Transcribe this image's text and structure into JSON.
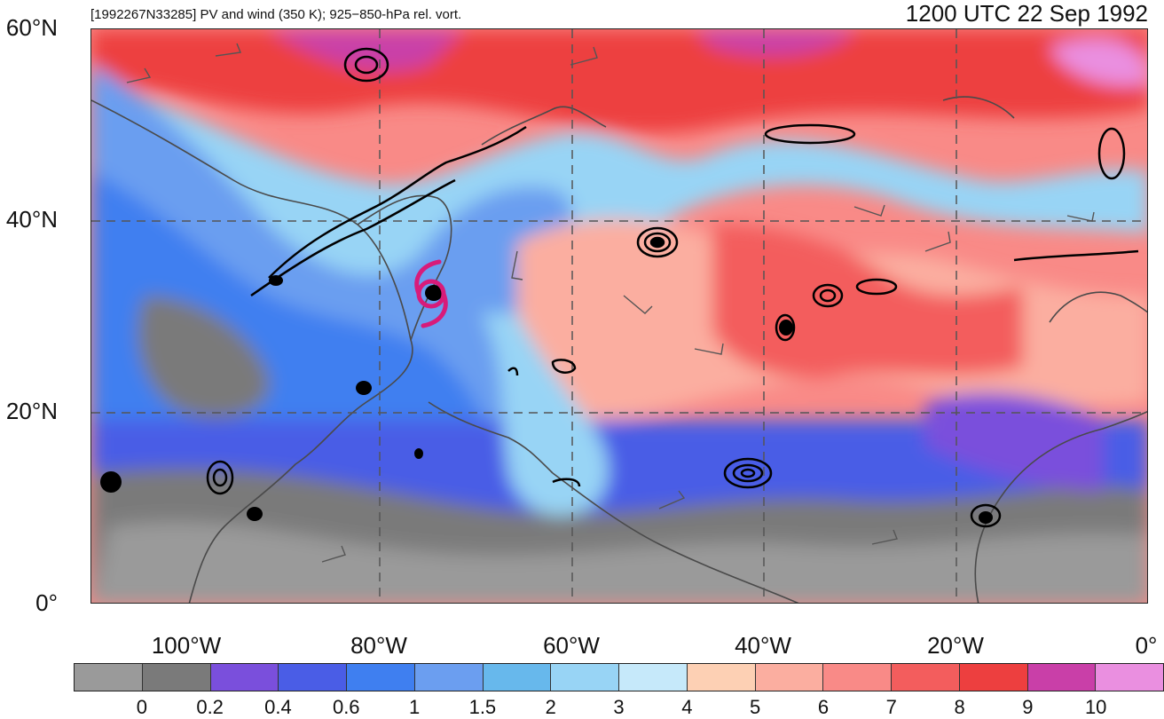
{
  "header": {
    "subtitle": "[1992267N33285] PV and wind (350 K); 925−850-hPa rel. vort.",
    "datetime": "1200 UTC 22 Sep 1992"
  },
  "axes": {
    "lat_labels": [
      "60°N",
      "40°N",
      "20°N",
      "0°"
    ],
    "lon_labels": [
      "100°W",
      "80°W",
      "60°W",
      "40°W",
      "20°W",
      "0°"
    ]
  },
  "map": {
    "lat_range": [
      0,
      60
    ],
    "lon_range": [
      -110,
      0
    ],
    "grid": "dashed every 20°",
    "storm_symbol": "tropical-cyclone-icon",
    "storm_color": "#d81b7a"
  },
  "colorbar": {
    "colors": [
      "#9a9a9a",
      "#7a7a7a",
      "#7a4fdc",
      "#4a5de6",
      "#3f7ff0",
      "#6b9ef0",
      "#67b8ec",
      "#98d4f5",
      "#c6e9fa",
      "#fdd0b4",
      "#fbaea0",
      "#f98a87",
      "#f35d5d",
      "#ed3f3f",
      "#c93fa8",
      "#ea8fe0"
    ],
    "labels": [
      "0",
      "0.2",
      "0.4",
      "0.6",
      "1",
      "1.5",
      "2",
      "3",
      "4",
      "5",
      "6",
      "7",
      "8",
      "9",
      "10"
    ]
  }
}
